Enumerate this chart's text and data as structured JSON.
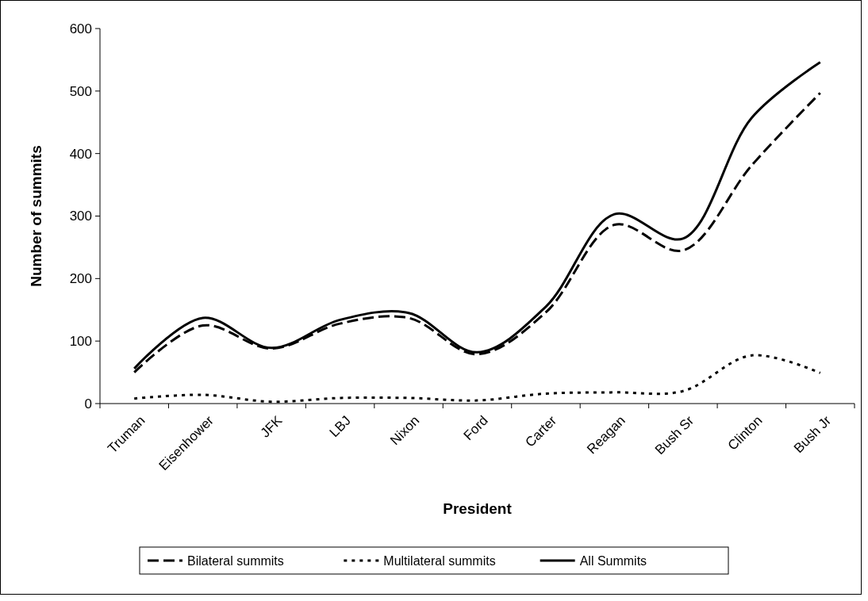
{
  "chart_data": {
    "type": "line",
    "xlabel": "President",
    "ylabel": "Number of summits",
    "categories": [
      "Truman",
      "Eisenhower",
      "JFK",
      "LBJ",
      "Nixon",
      "Ford",
      "Carter",
      "Reagan",
      "Bush Sr",
      "Clinton",
      "Bush Jr"
    ],
    "series": [
      {
        "name": "Bilateral summits",
        "color": "#000000",
        "line_style": "dashed",
        "values": [
          50,
          125,
          88,
          128,
          137,
          79,
          146,
          286,
          245,
          381,
          497
        ]
      },
      {
        "name": "Multilateral summits",
        "color": "#000000",
        "line_style": "dotted",
        "values": [
          8,
          14,
          3,
          9,
          9,
          5,
          16,
          18,
          20,
          77,
          49
        ]
      },
      {
        "name": "All Summits",
        "color": "#000000",
        "line_style": "solid",
        "values": [
          56,
          137,
          89,
          134,
          145,
          82,
          155,
          303,
          264,
          457,
          546
        ]
      }
    ],
    "ylim": [
      0,
      600
    ],
    "yticks": [
      0,
      100,
      200,
      300,
      400,
      500,
      600
    ],
    "grid": false,
    "legend": "bottom",
    "marker": "none"
  }
}
